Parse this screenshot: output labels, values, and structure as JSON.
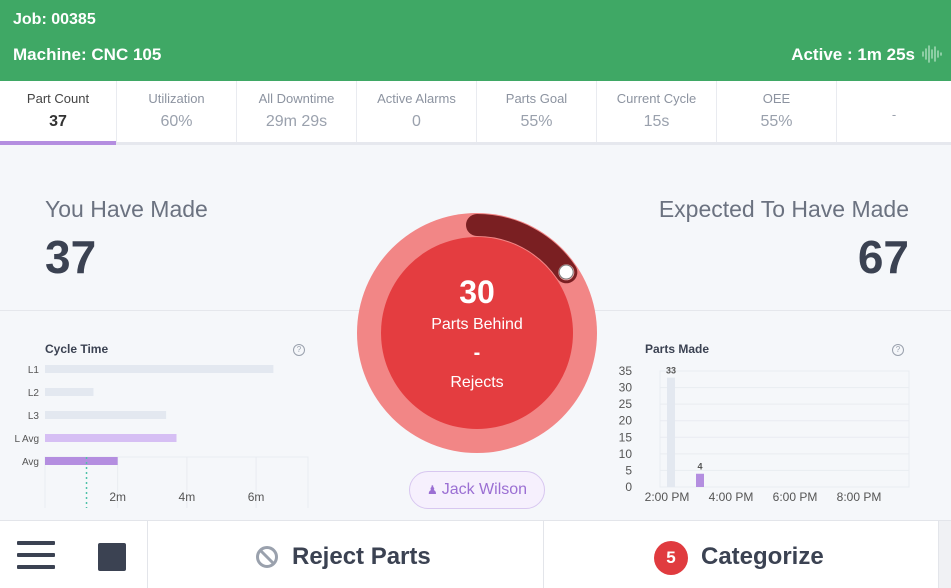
{
  "header": {
    "job": "Job: 00385",
    "machine": "Machine: CNC 105",
    "status": "Active : 1m 25s",
    "color": "#3fa865"
  },
  "stats": [
    {
      "label": "Part Count",
      "value": "37",
      "active": true
    },
    {
      "label": "Utilization",
      "value": "60%"
    },
    {
      "label": "All Downtime",
      "value": "29m 29s"
    },
    {
      "label": "Active Alarms",
      "value": "0"
    },
    {
      "label": "Parts Goal",
      "value": "55%"
    },
    {
      "label": "Current Cycle",
      "value": "15s"
    },
    {
      "label": "OEE",
      "value": "55%"
    },
    {
      "label": "",
      "value": "-"
    }
  ],
  "main": {
    "made_label": "You Have Made",
    "made_value": "37",
    "expected_label": "Expected To Have Made",
    "expected_value": "67",
    "ring": {
      "number": "30",
      "subtitle": "Parts Behind",
      "rejects_value": "-",
      "rejects_label": "Rejects",
      "progress_fraction": 0.552,
      "marker_fraction": 0.155,
      "colors": {
        "outer": "#f28686",
        "inner": "#e43d40",
        "progress": "#7a1f22"
      }
    },
    "operator": "Jack Wilson"
  },
  "chart_data": [
    {
      "type": "bar",
      "orientation": "horizontal",
      "title": "Cycle Time",
      "categories": [
        "L1",
        "L2",
        "L3",
        "L Avg",
        "Avg"
      ],
      "values": [
        6.5,
        1.3,
        3.4,
        3.7,
        2.0
      ],
      "colors": [
        "#e3e8f0",
        "#e3e8f0",
        "#e3e8f0",
        "#d6bff4",
        "#b48ee0"
      ],
      "target_line": 1.1,
      "xlim": [
        -0.1,
        7.5
      ],
      "xticks": [
        {
          "v": 2,
          "label": "2m"
        },
        {
          "v": 4,
          "label": "4m"
        },
        {
          "v": 6,
          "label": "6m"
        }
      ]
    },
    {
      "type": "bar",
      "title": "Parts Made",
      "x": [
        "2:00 PM",
        "3:00 PM"
      ],
      "values": [
        33,
        4
      ],
      "labels": [
        "33",
        "4"
      ],
      "colors": [
        "#e3e8f0",
        "#b48ee0"
      ],
      "ylim": [
        0,
        35
      ],
      "yticks": [
        "0",
        "5",
        "10",
        "15",
        "20",
        "25",
        "30",
        "35"
      ],
      "xticks": [
        "2:00 PM",
        "4:00 PM",
        "6:00 PM",
        "8:00 PM"
      ]
    }
  ],
  "footer": {
    "reject_label": "Reject Parts",
    "categorize_label": "Categorize",
    "categorize_count": "5"
  }
}
